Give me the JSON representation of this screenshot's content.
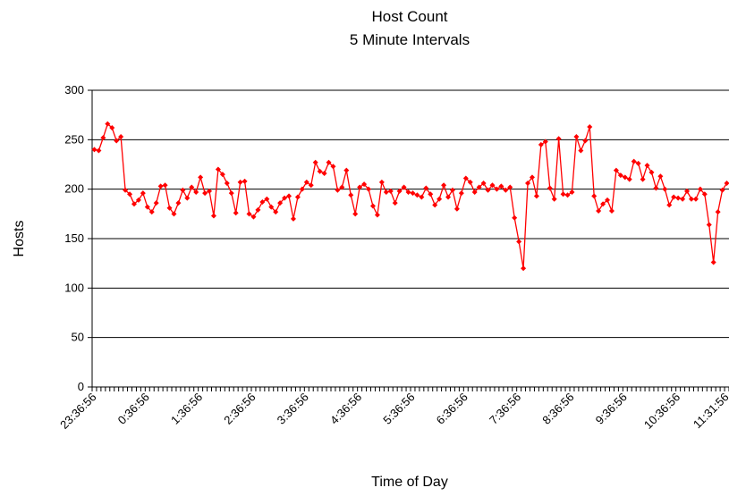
{
  "chart_data": {
    "type": "line",
    "title": "Host Count",
    "subtitle": "5 Minute Intervals",
    "x_label": "Time of Day",
    "y_label": "Hosts",
    "categories": [
      "23:36:56",
      null,
      null,
      null,
      null,
      null,
      null,
      null,
      null,
      null,
      null,
      null,
      "0:36:56",
      null,
      null,
      null,
      null,
      null,
      null,
      null,
      null,
      null,
      null,
      null,
      "1:36:56",
      null,
      null,
      null,
      null,
      null,
      null,
      null,
      null,
      null,
      null,
      null,
      "2:36:56",
      null,
      null,
      null,
      null,
      null,
      null,
      null,
      null,
      null,
      null,
      null,
      "3:36:56",
      null,
      null,
      null,
      null,
      null,
      null,
      null,
      null,
      null,
      null,
      null,
      "4:36:56",
      null,
      null,
      null,
      null,
      null,
      null,
      null,
      null,
      null,
      null,
      null,
      "5:36:56",
      null,
      null,
      null,
      null,
      null,
      null,
      null,
      null,
      null,
      null,
      null,
      "6:36:56",
      null,
      null,
      null,
      null,
      null,
      null,
      null,
      null,
      null,
      null,
      null,
      "7:36:56",
      null,
      null,
      null,
      null,
      null,
      null,
      null,
      null,
      null,
      null,
      null,
      "8:36:56",
      null,
      null,
      null,
      null,
      null,
      null,
      null,
      null,
      null,
      null,
      null,
      "9:36:56",
      null,
      null,
      null,
      null,
      null,
      null,
      null,
      null,
      null,
      null,
      null,
      "10:36:56",
      null,
      null,
      null,
      null,
      null,
      null,
      null,
      null,
      null,
      null,
      "11:31:56"
    ],
    "series": [
      {
        "name": "Hosts",
        "color": "#ff0000",
        "values": [
          240,
          239,
          252,
          266,
          262,
          249,
          253,
          199,
          195,
          185,
          189,
          196,
          182,
          177,
          186,
          203,
          204,
          181,
          175,
          186,
          199,
          191,
          202,
          197,
          212,
          196,
          198,
          173,
          220,
          215,
          206,
          196,
          176,
          207,
          208,
          175,
          172,
          179,
          187,
          190,
          182,
          177,
          186,
          191,
          193,
          170,
          192,
          200,
          207,
          204,
          227,
          218,
          216,
          227,
          223,
          199,
          202,
          219,
          194,
          175,
          202,
          205,
          200,
          183,
          174,
          207,
          197,
          198,
          186,
          198,
          202,
          197,
          196,
          194,
          192,
          201,
          195,
          184,
          190,
          204,
          192,
          199,
          180,
          196,
          211,
          207,
          197,
          202,
          206,
          199,
          204,
          200,
          203,
          199,
          202,
          171,
          147,
          120,
          206,
          212,
          193,
          245,
          248,
          201,
          190,
          251,
          195,
          194,
          197,
          253,
          239,
          249,
          263,
          193,
          178,
          185,
          189,
          178,
          219,
          214,
          212,
          210,
          228,
          226,
          210,
          224,
          217,
          201,
          213,
          200,
          184,
          192,
          191,
          190,
          198,
          190,
          190,
          200,
          195,
          164,
          126,
          177,
          199,
          206
        ]
      }
    ],
    "ylim": [
      0,
      300
    ],
    "yticks": [
      0,
      50,
      100,
      150,
      200,
      250,
      300
    ],
    "grid": true
  }
}
